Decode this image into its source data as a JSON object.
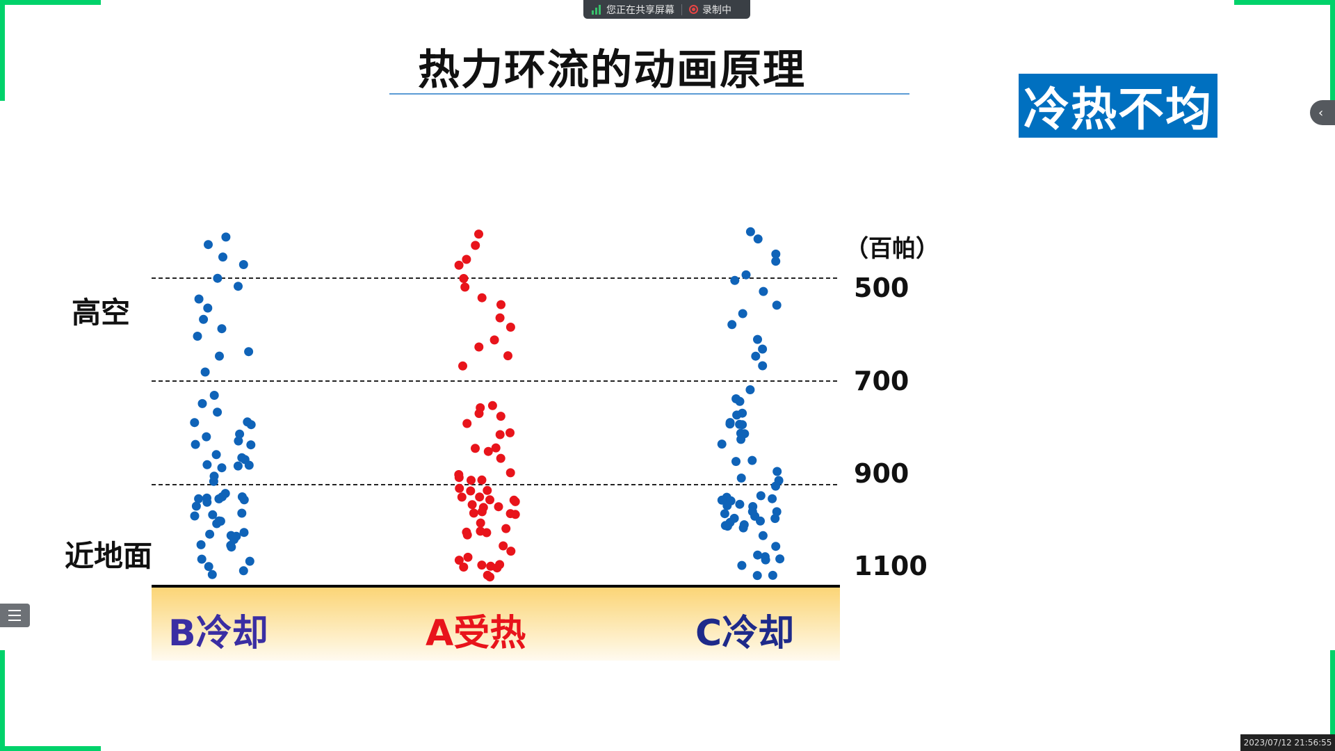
{
  "share_bar": {
    "sharing_text": "您正在共享屏幕",
    "recording_text": "录制中"
  },
  "slide": {
    "title": "热力环流的动画原理",
    "badge": "冷热不均",
    "label_high": "高空",
    "label_ground": "近地面",
    "unit": "（百帕）",
    "pressure_levels": [
      "500",
      "700",
      "900",
      "1100"
    ],
    "surfaces": [
      {
        "label": "B冷却",
        "color": "#3a2ea3"
      },
      {
        "label": "A受热",
        "color": "#e8141b"
      },
      {
        "label": "C冷却",
        "color": "#1e2a8a"
      }
    ]
  },
  "colors": {
    "cold_dot": "#0f63b8",
    "hot_dot": "#e8141b",
    "accent": "#0070c0"
  },
  "timestamp": "2023/07/12 21:56:55",
  "icons": {
    "side_tab": "chevron-left-icon",
    "list_button": "list-icon"
  }
}
